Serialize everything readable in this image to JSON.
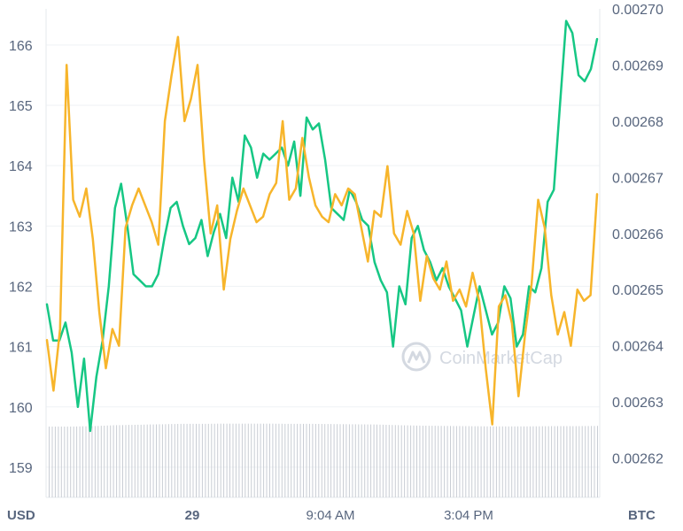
{
  "watermark": "CoinMarketCap",
  "chart_data": {
    "type": "line",
    "x_tick_labels": [
      "29",
      "9:04 AM",
      "3:04 PM"
    ],
    "left_axis": {
      "unit": "USD",
      "ticks": [
        "159",
        "160",
        "161",
        "162",
        "163",
        "164",
        "165",
        "166"
      ],
      "range": [
        158.5,
        166.6
      ]
    },
    "right_axis": {
      "unit": "BTC",
      "ticks": [
        "0.00262",
        "0.00263",
        "0.00264",
        "0.00265",
        "0.00266",
        "0.00267",
        "0.00268",
        "0.00269",
        "0.00270"
      ],
      "range": [
        0.002613,
        0.0027
      ]
    },
    "grid": true,
    "colors": {
      "usd": "#16c784",
      "btc": "#f7b52b",
      "volume": "#c9cdd4"
    },
    "series": [
      {
        "axis": "left",
        "values": [
          161.7,
          161.1,
          161.1,
          161.4,
          160.9,
          160.0,
          160.8,
          159.6,
          160.5,
          161.1,
          162.0,
          163.3,
          163.7,
          163.0,
          162.2,
          162.1,
          162.0,
          162.0,
          162.2,
          162.8,
          163.3,
          163.4,
          163.0,
          162.7,
          162.8,
          163.1,
          162.5,
          162.9,
          163.2,
          162.8,
          163.8,
          163.4,
          164.5,
          164.3,
          163.8,
          164.2,
          164.1,
          164.2,
          164.3,
          164.0,
          164.4,
          163.5,
          164.8,
          164.6,
          164.7,
          164.1,
          163.3,
          163.2,
          163.1,
          163.6,
          163.4,
          163.1,
          163.0,
          162.4,
          162.1,
          161.9,
          161.0,
          162.0,
          161.7,
          162.8,
          163.0,
          162.6,
          162.4,
          162.1,
          162.3,
          162.0,
          161.8,
          161.6,
          161.0,
          161.5,
          162.0,
          161.6,
          161.2,
          161.4,
          162.0,
          161.8,
          161.0,
          161.2,
          162.0,
          161.9,
          162.3,
          163.4,
          163.6,
          165.0,
          166.4,
          166.2,
          165.5,
          165.4,
          165.6,
          166.1
        ]
      },
      {
        "axis": "right",
        "values": [
          0.002641,
          0.002632,
          0.002643,
          0.00269,
          0.002666,
          0.002663,
          0.002668,
          0.002659,
          0.002646,
          0.002636,
          0.002643,
          0.00264,
          0.002661,
          0.002665,
          0.002668,
          0.002665,
          0.002662,
          0.002658,
          0.00268,
          0.002688,
          0.002695,
          0.00268,
          0.002684,
          0.00269,
          0.002673,
          0.00266,
          0.002665,
          0.00265,
          0.002659,
          0.002664,
          0.002668,
          0.002665,
          0.002662,
          0.002663,
          0.002667,
          0.002669,
          0.00268,
          0.002666,
          0.002668,
          0.002677,
          0.00267,
          0.002665,
          0.002663,
          0.002662,
          0.002667,
          0.002665,
          0.002668,
          0.002667,
          0.002661,
          0.002655,
          0.002664,
          0.002663,
          0.002672,
          0.00266,
          0.002658,
          0.002664,
          0.00266,
          0.002648,
          0.002656,
          0.002652,
          0.00265,
          0.002655,
          0.002648,
          0.00265,
          0.002647,
          0.002653,
          0.002648,
          0.002636,
          0.002626,
          0.002647,
          0.002649,
          0.002644,
          0.002631,
          0.002642,
          0.002651,
          0.002666,
          0.002661,
          0.002649,
          0.002642,
          0.002646,
          0.00264,
          0.00265,
          0.002648,
          0.002649,
          0.002667
        ]
      }
    ],
    "volume": {
      "shown": true,
      "relative_values": [
        0.6,
        0.6,
        0.62,
        0.66,
        0.68,
        0.7,
        0.72,
        0.72,
        0.73,
        0.73,
        0.73,
        0.72,
        0.72,
        0.71,
        0.7,
        0.69,
        0.66,
        0.64,
        0.63,
        0.62,
        0.61,
        0.61,
        0.61,
        0.62,
        0.62,
        0.63
      ]
    }
  }
}
